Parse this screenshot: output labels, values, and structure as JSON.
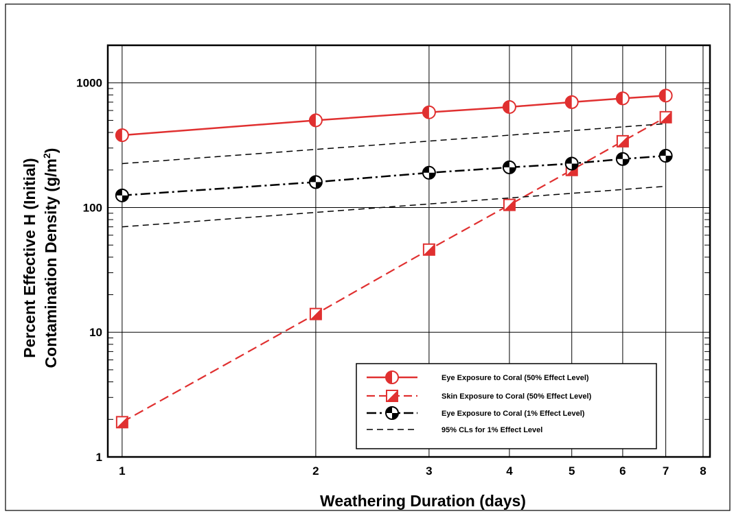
{
  "chart_data": {
    "type": "line",
    "xlabel": "Weathering Duration (days)",
    "ylabel_line1": "Percent Effective H (Initial)",
    "ylabel_line2_prefix": "Contamination Density (g/m",
    "ylabel_line2_sup": "2",
    "ylabel_line2_suffix": ")",
    "xscale": "log",
    "yscale": "log",
    "xlim": [
      0.95,
      8.2
    ],
    "ylim": [
      1,
      2000
    ],
    "x_ticks": [
      1,
      2,
      3,
      4,
      5,
      6,
      7,
      8
    ],
    "x_tick_labels": [
      "1",
      "2",
      "3",
      "4",
      "5",
      "6",
      "7",
      "8"
    ],
    "y_ticks": [
      1,
      10,
      100,
      1000
    ],
    "y_tick_labels": [
      "1",
      "10",
      "100",
      "1000"
    ],
    "grid": true,
    "legend_position": "lower-right",
    "series": [
      {
        "name": "Eye Exposure to Coral (50% Effect Level)",
        "color": "#e03030",
        "line": "solid",
        "marker": "circle-half",
        "x": [
          1,
          2,
          3,
          4,
          5,
          6,
          7
        ],
        "y": [
          380,
          500,
          580,
          640,
          700,
          750,
          790
        ]
      },
      {
        "name": "Skin Exposure to Coral (50% Effect Level)",
        "color": "#e03030",
        "line": "dashed",
        "marker": "square-half",
        "x": [
          1,
          2,
          3,
          4,
          5,
          6,
          7
        ],
        "y": [
          1.9,
          14,
          46,
          105,
          200,
          340,
          530
        ]
      },
      {
        "name": "Eye Exposure to Coral (1% Effect Level)",
        "color": "#000000",
        "line": "dashdot",
        "marker": "circle-quarter",
        "x": [
          1,
          2,
          3,
          4,
          5,
          6,
          7
        ],
        "y": [
          125,
          160,
          190,
          210,
          225,
          245,
          260
        ]
      },
      {
        "name": "95% CLs for 1% Effect Level",
        "color": "#000000",
        "line": "dashed-thin",
        "marker": "none",
        "x": [
          1,
          7
        ],
        "y": [
          225,
          470
        ]
      },
      {
        "name": "",
        "color": "#000000",
        "line": "dashed-thin",
        "marker": "none",
        "x": [
          1,
          7
        ],
        "y": [
          70,
          148
        ]
      }
    ]
  }
}
